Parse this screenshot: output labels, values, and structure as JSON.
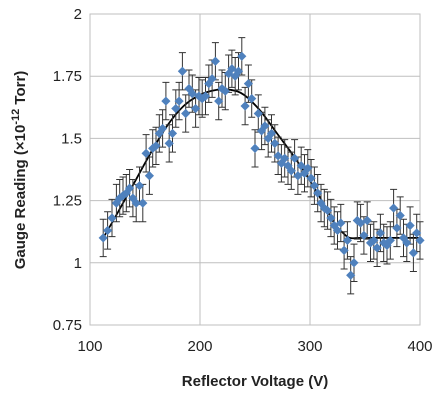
{
  "chart_data": {
    "type": "scatter",
    "title": "",
    "xlabel": "Reflector Voltage (V)",
    "ylabel_prefix": "Gauge Reading (×10",
    "ylabel_sup": "-12",
    "ylabel_suffix": " Torr)",
    "xlim": [
      100,
      400
    ],
    "ylim": [
      0.75,
      2
    ],
    "xticks": [
      100,
      200,
      300,
      400
    ],
    "yticks": [
      "0.75",
      "1",
      "1.25",
      "1.5",
      "1.75",
      "2"
    ],
    "grid": true,
    "legend": "none",
    "marker_color": "#4f81bd",
    "fit_color": "#000000",
    "error_bar_color": "#333333",
    "error": 0.075,
    "points": [
      {
        "x": 112,
        "y": 1.1
      },
      {
        "x": 116,
        "y": 1.13
      },
      {
        "x": 120,
        "y": 1.18
      },
      {
        "x": 124,
        "y": 1.24
      },
      {
        "x": 127,
        "y": 1.26
      },
      {
        "x": 130,
        "y": 1.27
      },
      {
        "x": 133,
        "y": 1.28
      },
      {
        "x": 136,
        "y": 1.3
      },
      {
        "x": 139,
        "y": 1.26
      },
      {
        "x": 142,
        "y": 1.24
      },
      {
        "x": 145,
        "y": 1.31
      },
      {
        "x": 148,
        "y": 1.24
      },
      {
        "x": 151,
        "y": 1.44
      },
      {
        "x": 154,
        "y": 1.35
      },
      {
        "x": 157,
        "y": 1.46
      },
      {
        "x": 160,
        "y": 1.47
      },
      {
        "x": 163,
        "y": 1.52
      },
      {
        "x": 166,
        "y": 1.54
      },
      {
        "x": 169,
        "y": 1.65
      },
      {
        "x": 172,
        "y": 1.48
      },
      {
        "x": 175,
        "y": 1.52
      },
      {
        "x": 178,
        "y": 1.62
      },
      {
        "x": 181,
        "y": 1.65
      },
      {
        "x": 184,
        "y": 1.77
      },
      {
        "x": 187,
        "y": 1.6
      },
      {
        "x": 190,
        "y": 1.7
      },
      {
        "x": 193,
        "y": 1.68
      },
      {
        "x": 196,
        "y": 1.62
      },
      {
        "x": 199,
        "y": 1.67
      },
      {
        "x": 202,
        "y": 1.66
      },
      {
        "x": 205,
        "y": 1.67
      },
      {
        "x": 208,
        "y": 1.72
      },
      {
        "x": 211,
        "y": 1.74
      },
      {
        "x": 214,
        "y": 1.81
      },
      {
        "x": 217,
        "y": 1.65
      },
      {
        "x": 220,
        "y": 1.7
      },
      {
        "x": 223,
        "y": 1.69
      },
      {
        "x": 226,
        "y": 1.76
      },
      {
        "x": 229,
        "y": 1.78
      },
      {
        "x": 232,
        "y": 1.75
      },
      {
        "x": 235,
        "y": 1.77
      },
      {
        "x": 238,
        "y": 1.83
      },
      {
        "x": 241,
        "y": 1.63
      },
      {
        "x": 244,
        "y": 1.72
      },
      {
        "x": 247,
        "y": 1.66
      },
      {
        "x": 250,
        "y": 1.46
      },
      {
        "x": 253,
        "y": 1.6
      },
      {
        "x": 256,
        "y": 1.53
      },
      {
        "x": 259,
        "y": 1.55
      },
      {
        "x": 262,
        "y": 1.5
      },
      {
        "x": 265,
        "y": 1.52
      },
      {
        "x": 268,
        "y": 1.48
      },
      {
        "x": 271,
        "y": 1.43
      },
      {
        "x": 274,
        "y": 1.4
      },
      {
        "x": 277,
        "y": 1.42
      },
      {
        "x": 280,
        "y": 1.39
      },
      {
        "x": 283,
        "y": 1.37
      },
      {
        "x": 286,
        "y": 1.42
      },
      {
        "x": 289,
        "y": 1.35
      },
      {
        "x": 292,
        "y": 1.39
      },
      {
        "x": 295,
        "y": 1.36
      },
      {
        "x": 298,
        "y": 1.38
      },
      {
        "x": 301,
        "y": 1.34
      },
      {
        "x": 304,
        "y": 1.31
      },
      {
        "x": 307,
        "y": 1.28
      },
      {
        "x": 310,
        "y": 1.24
      },
      {
        "x": 313,
        "y": 1.22
      },
      {
        "x": 316,
        "y": 1.21
      },
      {
        "x": 319,
        "y": 1.18
      },
      {
        "x": 322,
        "y": 1.15
      },
      {
        "x": 325,
        "y": 1.13
      },
      {
        "x": 328,
        "y": 1.16
      },
      {
        "x": 331,
        "y": 1.05
      },
      {
        "x": 334,
        "y": 1.09
      },
      {
        "x": 337,
        "y": 0.95
      },
      {
        "x": 340,
        "y": 1.0
      },
      {
        "x": 343,
        "y": 1.17
      },
      {
        "x": 346,
        "y": 1.16
      },
      {
        "x": 349,
        "y": 1.11
      },
      {
        "x": 352,
        "y": 1.17
      },
      {
        "x": 355,
        "y": 1.08
      },
      {
        "x": 358,
        "y": 1.09
      },
      {
        "x": 361,
        "y": 1.06
      },
      {
        "x": 364,
        "y": 1.12
      },
      {
        "x": 367,
        "y": 1.08
      },
      {
        "x": 370,
        "y": 1.07
      },
      {
        "x": 373,
        "y": 1.09
      },
      {
        "x": 376,
        "y": 1.22
      },
      {
        "x": 379,
        "y": 1.14
      },
      {
        "x": 382,
        "y": 1.19
      },
      {
        "x": 385,
        "y": 1.1
      },
      {
        "x": 388,
        "y": 1.08
      },
      {
        "x": 391,
        "y": 1.15
      },
      {
        "x": 394,
        "y": 1.04
      },
      {
        "x": 397,
        "y": 1.12
      },
      {
        "x": 400,
        "y": 1.09
      }
    ],
    "fit_line": {
      "x": [
        112,
        125,
        140,
        155,
        170,
        185,
        200,
        215,
        228,
        240,
        255,
        270,
        285,
        300,
        312,
        322,
        330,
        336,
        345,
        360,
        380,
        400
      ],
      "y": [
        1.1,
        1.2,
        1.32,
        1.44,
        1.55,
        1.63,
        1.675,
        1.695,
        1.695,
        1.675,
        1.61,
        1.52,
        1.43,
        1.33,
        1.24,
        1.16,
        1.12,
        1.1,
        1.1,
        1.1,
        1.1,
        1.1
      ]
    }
  }
}
